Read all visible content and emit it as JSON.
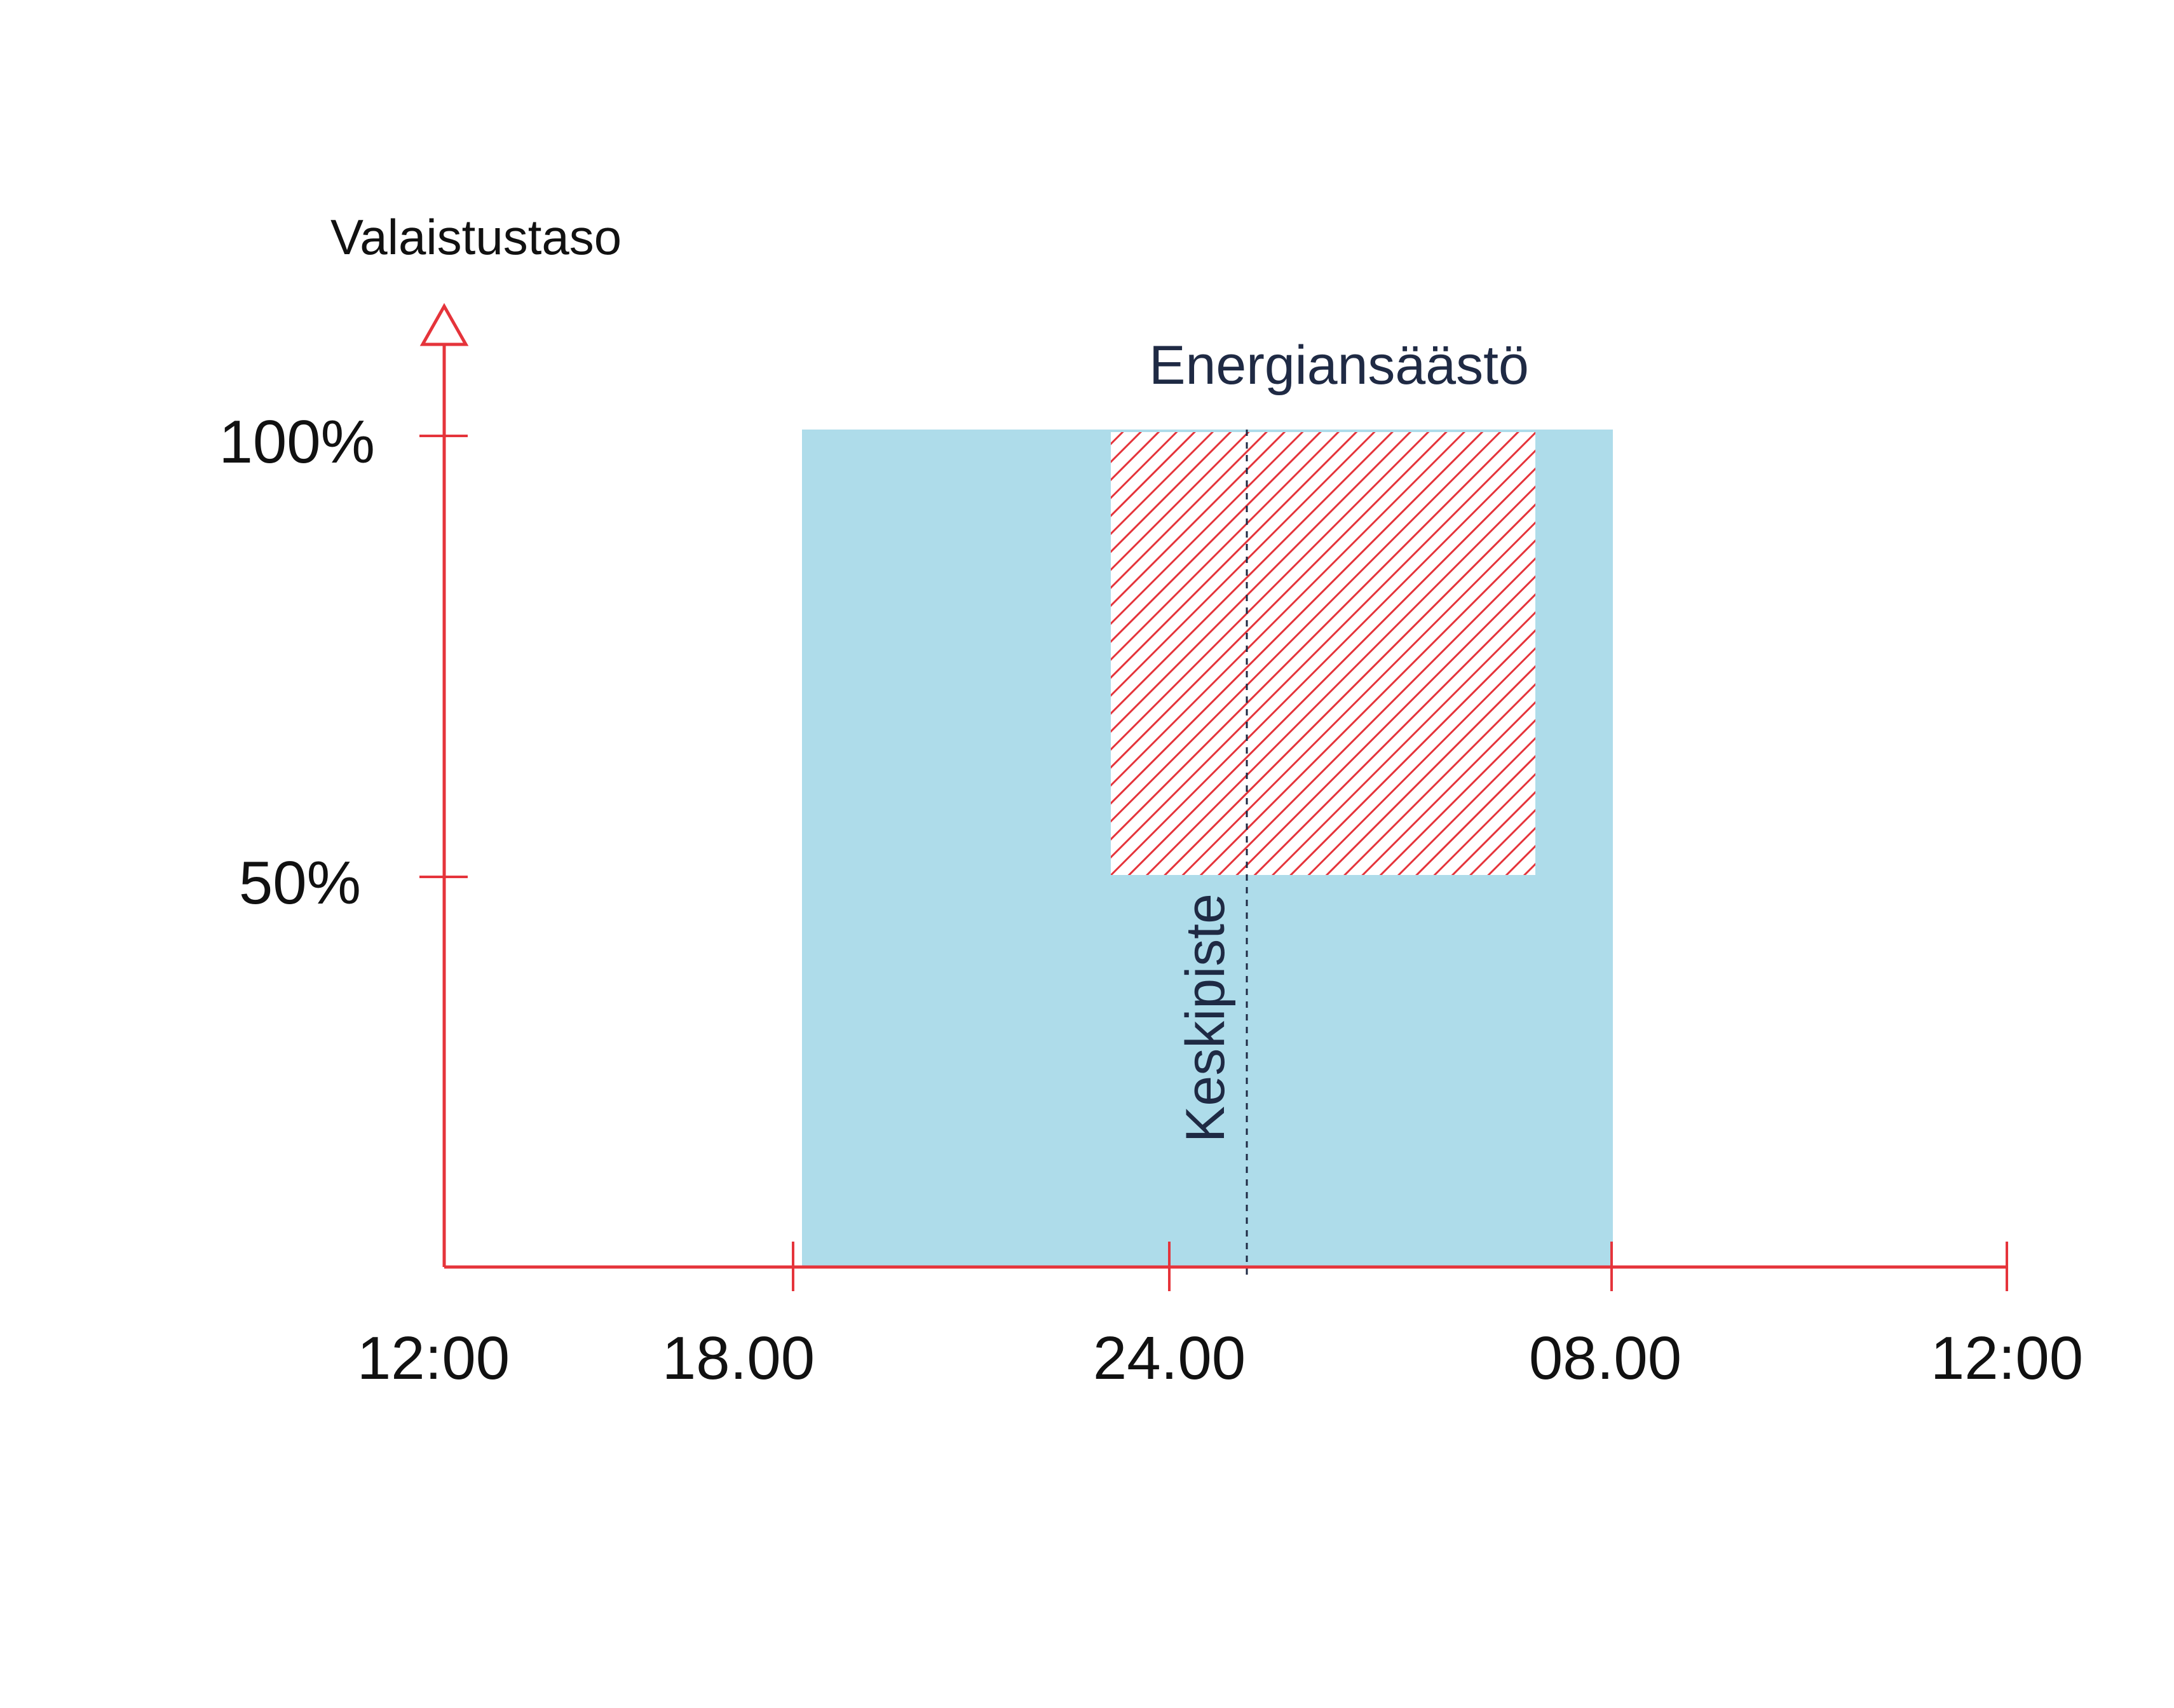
{
  "chart_data": {
    "type": "area",
    "ylabel": "Valaistustaso",
    "x_tick_labels": [
      "12:00",
      "18.00",
      "24.00",
      "08.00",
      "12:00"
    ],
    "y_tick_labels": [
      "100%",
      "50%"
    ],
    "lighting_level_percent": [
      {
        "from": "18.00",
        "to": "08.00",
        "level": 100
      }
    ],
    "energy_saving": {
      "label": "Energiansäästö",
      "level_from": 50,
      "level_to": 100
    },
    "midpoint": {
      "label": "Keskipiste"
    },
    "colors": {
      "axis": "#e5343b",
      "lighting_fill": "#aedcea",
      "saving_hatch": "#e5343b",
      "annotation_text": "#1f2a44",
      "midpoint_line": "#1f2a44"
    }
  }
}
